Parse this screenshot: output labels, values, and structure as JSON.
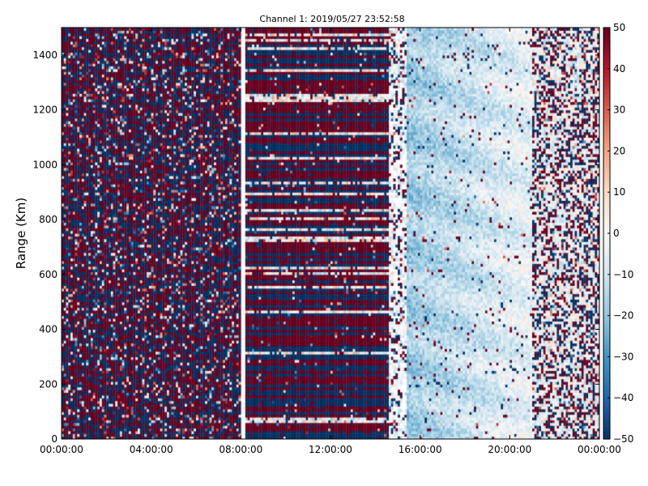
{
  "chart_data": {
    "type": "heatmap",
    "title": "Channel 1: 2019/05/27 23:52:58",
    "xlabel": "",
    "ylabel": "Range (Km)",
    "x_ticks": [
      "00:00:00",
      "04:00:00",
      "08:00:00",
      "12:00:00",
      "16:00:00",
      "20:00:00",
      "00:00:00"
    ],
    "x_tick_hours": [
      0,
      4,
      8,
      12,
      16,
      20,
      24
    ],
    "xlim_hours": [
      0,
      24
    ],
    "y_ticks": [
      0,
      200,
      400,
      600,
      800,
      1000,
      1200,
      1400
    ],
    "ylim": [
      0,
      1500
    ],
    "colorbar": {
      "ticks": [
        50,
        40,
        30,
        20,
        10,
        0,
        -10,
        -20,
        -30,
        -40,
        -50
      ],
      "range": [
        -50,
        50
      ],
      "colormap": "RdBu_r",
      "colors": {
        "low": "#053061",
        "mid": "#f7f7f7",
        "high": "#67001f"
      }
    },
    "regions": [
      {
        "hours": [
          0,
          8
        ],
        "pattern": "random noise, saturated values between -50 and 50"
      },
      {
        "hours": [
          8,
          8.2
        ],
        "pattern": "white gap"
      },
      {
        "hours": [
          8.2,
          14.6
        ],
        "pattern": "horizontal banded noise, saturated +/-50"
      },
      {
        "hours": [
          14.6,
          15.4
        ],
        "pattern": "sparse noise on white"
      },
      {
        "hours": [
          15.4,
          21
        ],
        "pattern": "smooth values mostly -20 to +10"
      },
      {
        "hours": [
          21,
          24
        ],
        "pattern": "mixed noise and smooth values"
      }
    ]
  }
}
